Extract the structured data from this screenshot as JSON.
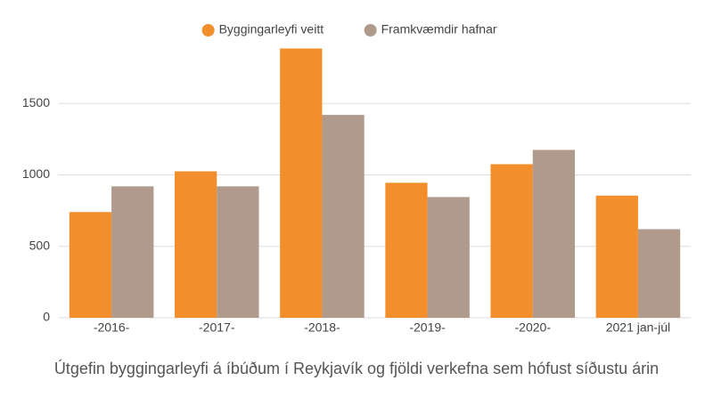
{
  "chart_data": {
    "type": "bar",
    "title": "Útgefin byggingarleyfi á íbúðum í Reykjavík og fjöldi verkefna sem hófust síðustu árin",
    "categories": [
      "-2016-",
      "-2017-",
      "-2018-",
      "-2019-",
      "-2020-",
      "2021 jan-júl"
    ],
    "series": [
      {
        "name": "Byggingarleyfi veitt",
        "color": "#f28e2b",
        "values": [
          740,
          1025,
          1885,
          945,
          1075,
          855
        ]
      },
      {
        "name": "Framkvæmdir hafnar",
        "color": "#b09a8c",
        "values": [
          920,
          920,
          1420,
          845,
          1175,
          620
        ]
      }
    ],
    "ylim": [
      0,
      2000
    ],
    "yticks": [
      0,
      500,
      1000,
      1500
    ],
    "grid": true
  }
}
